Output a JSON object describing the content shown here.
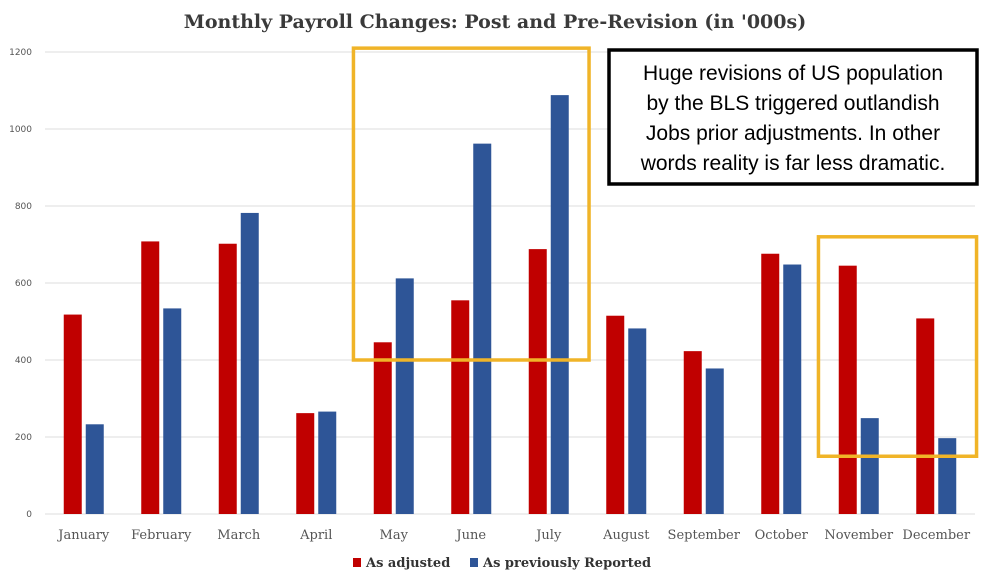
{
  "chart_data": {
    "type": "bar",
    "title": "Monthly Payroll Changes: Post and Pre-Revision (in '000s)",
    "categories": [
      "January",
      "February",
      "March",
      "April",
      "May",
      "June",
      "July",
      "August",
      "September",
      "October",
      "November",
      "December"
    ],
    "series": [
      {
        "name": "As adjusted",
        "color": "#c00000",
        "values": [
          518,
          708,
          702,
          262,
          446,
          555,
          688,
          515,
          423,
          676,
          645,
          508
        ]
      },
      {
        "name": "As previously Reported",
        "color": "#2e5597",
        "values": [
          233,
          534,
          782,
          266,
          612,
          962,
          1088,
          482,
          378,
          648,
          249,
          197
        ]
      }
    ],
    "ylim": [
      0,
      1200
    ],
    "yticks": [
      0,
      200,
      400,
      600,
      800,
      1000,
      1200
    ],
    "grid": true,
    "legend_position": "bottom-center",
    "highlight_color": "#f0b428",
    "annotation": {
      "lines": [
        "Huge revisions of US population",
        "by the BLS triggered outlandish",
        "Jobs prior adjustments. In other",
        "words reality is far less dramatic."
      ]
    }
  }
}
